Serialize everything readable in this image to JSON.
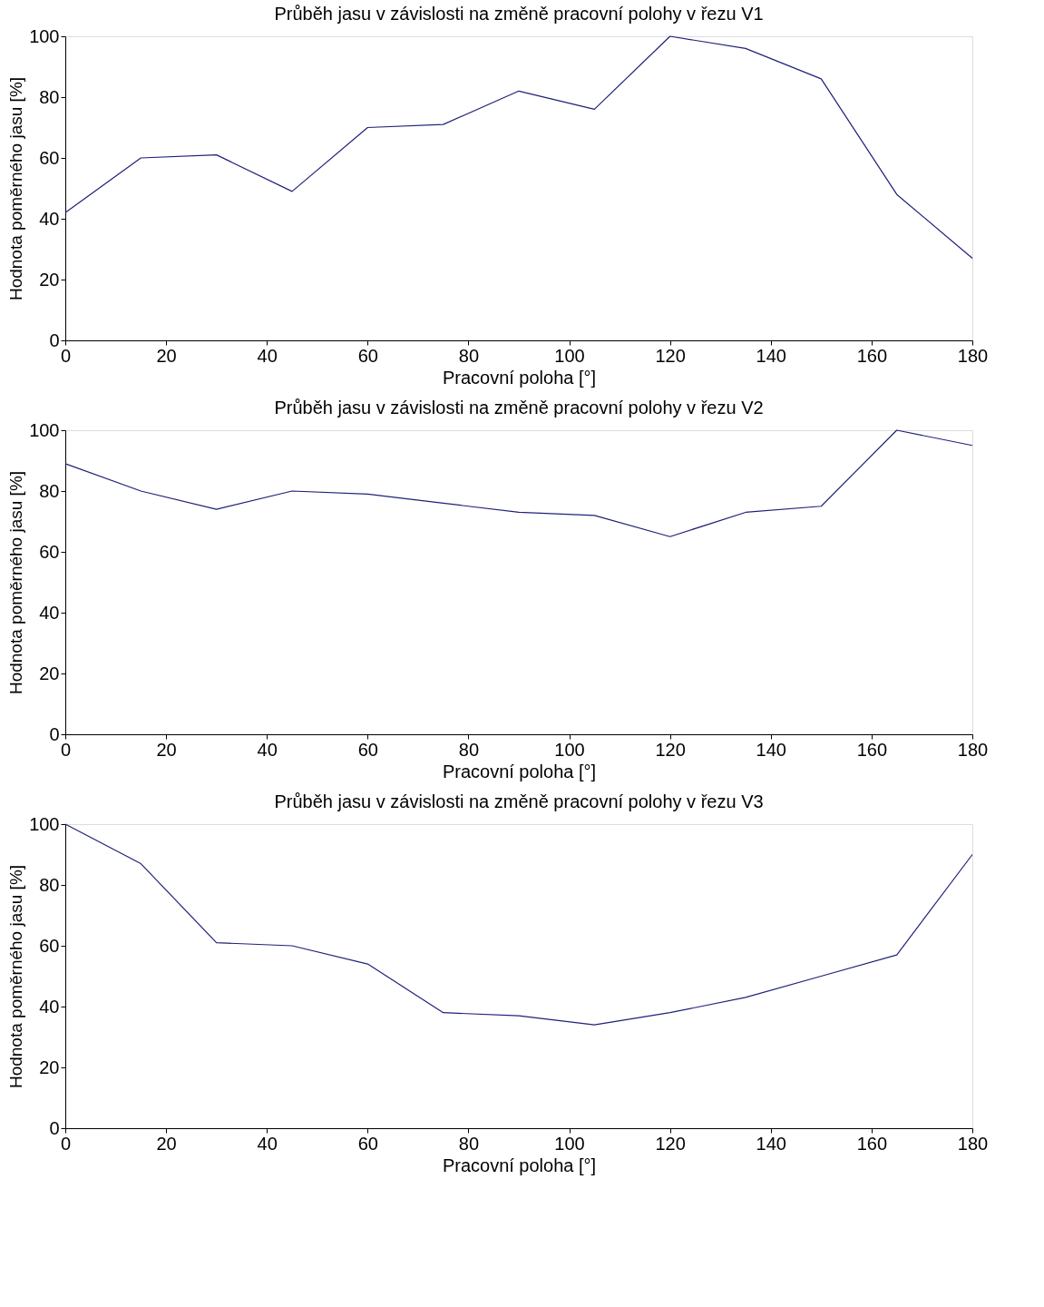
{
  "chart_data": [
    {
      "type": "line",
      "title": "Průběh jasu v závislosti na změně pracovní polohy v řezu V1",
      "xlabel": "Pracovní poloha [°]",
      "ylabel": "Hodnota poměrného jasu [%]",
      "x": [
        0,
        15,
        30,
        45,
        60,
        75,
        90,
        105,
        120,
        135,
        150,
        165,
        180
      ],
      "series": [
        {
          "color": "#20207a",
          "values": [
            42,
            60,
            61,
            49,
            70,
            71,
            82,
            76,
            100,
            96,
            86,
            48,
            27
          ]
        }
      ],
      "xlim": [
        0,
        180
      ],
      "ylim": [
        0,
        100
      ],
      "xticks": [
        0,
        20,
        40,
        60,
        80,
        100,
        120,
        140,
        160,
        180
      ],
      "yticks": [
        0,
        20,
        40,
        60,
        80,
        100
      ],
      "grid": false
    },
    {
      "type": "line",
      "title": "Průběh jasu v závislosti na změně pracovní polohy v řezu V2",
      "xlabel": "Pracovní poloha [°]",
      "ylabel": "Hodnota poměrného jasu [%]",
      "x": [
        0,
        15,
        30,
        45,
        60,
        75,
        90,
        105,
        120,
        135,
        150,
        165,
        180
      ],
      "series": [
        {
          "color": "#20207a",
          "values": [
            89,
            80,
            74,
            80,
            79,
            76,
            73,
            72,
            65,
            73,
            75,
            100,
            95
          ]
        }
      ],
      "xlim": [
        0,
        180
      ],
      "ylim": [
        0,
        100
      ],
      "xticks": [
        0,
        20,
        40,
        60,
        80,
        100,
        120,
        140,
        160,
        180
      ],
      "yticks": [
        0,
        20,
        40,
        60,
        80,
        100
      ],
      "grid": false
    },
    {
      "type": "line",
      "title": "Průběh jasu v závislosti na změně pracovní polohy v řezu V3",
      "xlabel": "Pracovní poloha [°]",
      "ylabel": "Hodnota poměrného jasu [%]",
      "x": [
        0,
        15,
        30,
        45,
        60,
        75,
        90,
        105,
        120,
        135,
        150,
        165,
        180
      ],
      "series": [
        {
          "color": "#20207a",
          "values": [
            100,
            87,
            61,
            60,
            54,
            38,
            37,
            34,
            38,
            43,
            50,
            57,
            90
          ]
        }
      ],
      "xlim": [
        0,
        180
      ],
      "ylim": [
        0,
        100
      ],
      "xticks": [
        0,
        20,
        40,
        60,
        80,
        100,
        120,
        140,
        160,
        180
      ],
      "yticks": [
        0,
        20,
        40,
        60,
        80,
        100
      ],
      "grid": false
    }
  ]
}
